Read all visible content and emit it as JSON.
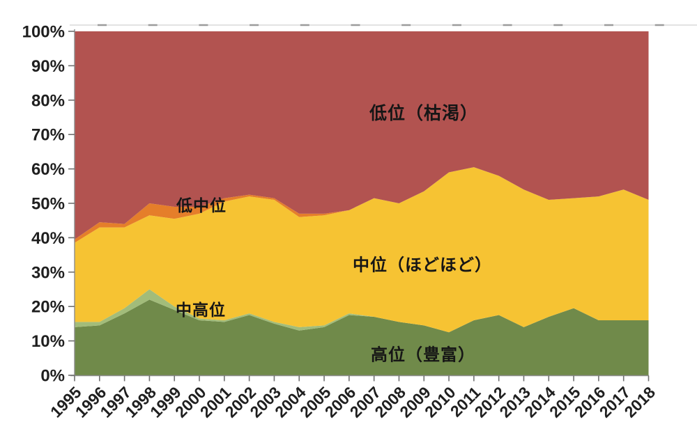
{
  "chart_data": {
    "type": "area",
    "stacked": "percent",
    "x": [
      1995,
      1996,
      1997,
      1998,
      1999,
      2000,
      2001,
      2002,
      2003,
      2004,
      2005,
      2006,
      2007,
      2008,
      2009,
      2010,
      2011,
      2012,
      2013,
      2014,
      2015,
      2016,
      2017,
      2018
    ],
    "xlabel": "",
    "ylabel": "",
    "ylim": [
      0,
      100
    ],
    "grid": false,
    "legend_position": "labels-inside-plot",
    "y_axis": {
      "ticks": [
        "0%",
        "10%",
        "20%",
        "30%",
        "40%",
        "50%",
        "60%",
        "70%",
        "80%",
        "90%",
        "100%"
      ]
    },
    "series": [
      {
        "name": "高位（豊富）",
        "color": "#708a4a",
        "values": [
          14,
          14.5,
          18,
          22,
          19,
          16,
          15.5,
          17.5,
          15,
          13,
          14,
          17.5,
          17,
          15.5,
          14.5,
          12.5,
          16,
          17.5,
          14,
          17,
          19.5,
          16,
          16,
          16
        ]
      },
      {
        "name": "中高位",
        "color": "#a2bc7a",
        "values": [
          1.5,
          1,
          1.5,
          3,
          1,
          0.5,
          0.5,
          0.5,
          0.5,
          1,
          0.5,
          0.5,
          0,
          0,
          0,
          0,
          0,
          0,
          0,
          0,
          0,
          0,
          0,
          0
        ]
      },
      {
        "name": "中位（ほどほど）",
        "color": "#f6c333",
        "values": [
          23,
          27.5,
          23.5,
          21.5,
          25.5,
          30.5,
          34.5,
          34,
          35.5,
          32,
          32,
          30,
          34.5,
          34.5,
          39,
          46.5,
          44.5,
          40.5,
          40,
          34,
          32,
          36,
          38,
          35
        ]
      },
      {
        "name": "低中位",
        "color": "#e57e2a",
        "values": [
          1,
          1.5,
          1,
          3.5,
          3.5,
          2,
          1,
          0.5,
          0.5,
          1,
          0.5,
          0,
          0,
          0,
          0,
          0,
          0,
          0,
          0,
          0,
          0,
          0,
          0,
          0
        ]
      },
      {
        "name": "低位（枯渇）",
        "color": "#b25350",
        "values": [
          60.5,
          55.5,
          56,
          50,
          51,
          51,
          48.5,
          47.5,
          48.5,
          53,
          53,
          52,
          48.5,
          50,
          46.5,
          41,
          39.5,
          42,
          46,
          49,
          48.5,
          48,
          46,
          49
        ]
      }
    ],
    "annotations": [
      {
        "text": "低位（枯渇）"
      },
      {
        "text": "低中位"
      },
      {
        "text": "中位（ほどほど）"
      },
      {
        "text": "中高位"
      },
      {
        "text": "高位（豊富）"
      }
    ],
    "colors": {
      "axis_line": "#8c8c8c",
      "tick": "#707070",
      "label_text": "#1f1f1f"
    }
  }
}
